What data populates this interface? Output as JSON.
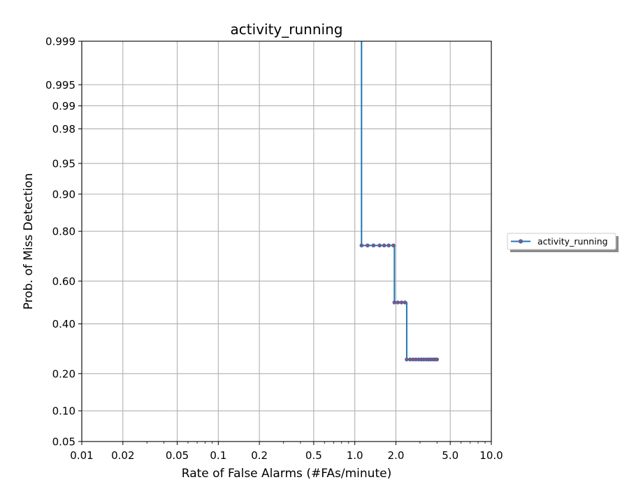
{
  "chart_data": {
    "type": "line",
    "title": "activity_running",
    "xlabel": "Rate of False Alarms (#FAs/minute)",
    "ylabel": "Prob. of Miss Detection",
    "x_scale": "log",
    "y_scale": "normal-deviate",
    "xlim": [
      0.01,
      10.0
    ],
    "ylim": [
      0.05,
      0.999
    ],
    "x_ticks": [
      0.01,
      0.02,
      0.05,
      0.1,
      0.2,
      0.5,
      1.0,
      2.0,
      5.0,
      10.0
    ],
    "x_tick_labels": [
      "0.01",
      "0.02",
      "0.05",
      "0.1",
      "0.2",
      "0.5",
      "1.0",
      "2.0",
      "5.0",
      "10.0"
    ],
    "y_ticks": [
      0.05,
      0.1,
      0.2,
      0.4,
      0.6,
      0.8,
      0.9,
      0.95,
      0.98,
      0.99,
      0.995,
      0.999
    ],
    "y_tick_labels": [
      "0.05",
      "0.10",
      "0.20",
      "0.40",
      "0.60",
      "0.80",
      "0.90",
      "0.95",
      "0.98",
      "0.99",
      "0.995",
      "0.999"
    ],
    "grid": true,
    "legend_position": "right",
    "line_color": "#1f77b4",
    "marker_color": "#9b4a7a",
    "series": [
      {
        "name": "activity_running",
        "step": true,
        "top_start": {
          "x": 1.12,
          "y": 0.999
        },
        "points": [
          {
            "x": 1.12,
            "y": 0.75
          },
          {
            "x": 1.24,
            "y": 0.75
          },
          {
            "x": 1.37,
            "y": 0.75
          },
          {
            "x": 1.52,
            "y": 0.75
          },
          {
            "x": 1.64,
            "y": 0.75
          },
          {
            "x": 1.77,
            "y": 0.75
          },
          {
            "x": 1.92,
            "y": 0.75
          },
          {
            "x": 1.95,
            "y": 0.5
          },
          {
            "x": 2.07,
            "y": 0.5
          },
          {
            "x": 2.2,
            "y": 0.5
          },
          {
            "x": 2.33,
            "y": 0.5
          },
          {
            "x": 2.4,
            "y": 0.25
          },
          {
            "x": 2.54,
            "y": 0.25
          },
          {
            "x": 2.67,
            "y": 0.25
          },
          {
            "x": 2.8,
            "y": 0.25
          },
          {
            "x": 2.94,
            "y": 0.25
          },
          {
            "x": 3.07,
            "y": 0.25
          },
          {
            "x": 3.2,
            "y": 0.25
          },
          {
            "x": 3.34,
            "y": 0.25
          },
          {
            "x": 3.47,
            "y": 0.25
          },
          {
            "x": 3.6,
            "y": 0.25
          },
          {
            "x": 3.74,
            "y": 0.25
          },
          {
            "x": 3.87,
            "y": 0.25
          },
          {
            "x": 4.0,
            "y": 0.25
          }
        ]
      }
    ]
  }
}
